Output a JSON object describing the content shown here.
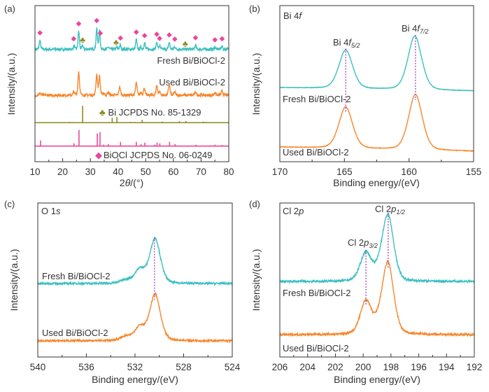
{
  "colors": {
    "fresh": "#3cbfc0",
    "used": "#f7862b",
    "bi_ref": "#8b8b1e",
    "biocl_ref": "#e8489b",
    "guide": "#a040c0",
    "axis": "#333333"
  },
  "chart_data": [
    {
      "panel": "(a)",
      "type": "line",
      "xlabel_pre": "2",
      "xlabel_theta": "θ",
      "xlabel_post": "/(°)",
      "ylabel": "Intensity/(a.u.)",
      "xlim": [
        10,
        80
      ],
      "ylim": [
        0,
        100
      ],
      "reversed": false,
      "xticks": [
        10,
        20,
        30,
        40,
        50,
        60,
        70,
        80
      ],
      "minor_step": 5,
      "grid": false,
      "series": [
        {
          "name": "Fresh Bi/BiOCl-2",
          "color_key": "fresh",
          "kind": "curve",
          "baseline": [
            72,
            72
          ],
          "noise": 0.9,
          "width": 0.25,
          "peaks": [
            [
              11.8,
              5.8
            ],
            [
              24.1,
              2.2
            ],
            [
              25.8,
              11.6
            ],
            [
              27.2,
              2.4
            ],
            [
              32.3,
              13.4
            ],
            [
              33.3,
              11.6
            ],
            [
              36.5,
              1.5
            ],
            [
              39.5,
              1.2
            ],
            [
              40.8,
              2.7
            ],
            [
              46.6,
              6.3
            ],
            [
              48.3,
              1.5
            ],
            [
              49.6,
              4
            ],
            [
              54.0,
              4.9
            ],
            [
              55.0,
              2.2
            ],
            [
              58.5,
              4.5
            ],
            [
              60.5,
              1.8
            ],
            [
              68.0,
              2.7
            ],
            [
              75.0,
              1.4
            ],
            [
              77.5,
              2.2
            ]
          ]
        },
        {
          "name": "Used Bi/BiOCl-2",
          "color_key": "used",
          "kind": "curve",
          "baseline": [
            42.6,
            42.6
          ],
          "noise": 0.9,
          "width": 0.28,
          "peaks": [
            [
              11.8,
              1.4
            ],
            [
              24.0,
              2.2
            ],
            [
              25.8,
              15.2
            ],
            [
              32.3,
              13.4
            ],
            [
              33.3,
              12.1
            ],
            [
              34.8,
              1.4
            ],
            [
              36.5,
              1.8
            ],
            [
              40.6,
              5.4
            ],
            [
              46.6,
              8
            ],
            [
              48.3,
              1.8
            ],
            [
              49.5,
              4.5
            ],
            [
              54.0,
              6.3
            ],
            [
              55.0,
              2.2
            ],
            [
              58.5,
              7.2
            ],
            [
              60.5,
              2.2
            ],
            [
              68.0,
              2.2
            ],
            [
              75.0,
              1.8
            ],
            [
              77.6,
              2.7
            ]
          ]
        },
        {
          "name": "Bi JCPDS No. 85-1329",
          "color_key": "bi_ref",
          "kind": "sticks",
          "baseline": [
            25,
            25
          ],
          "peaks": [
            [
              22.5,
              0.5
            ],
            [
              23.8,
              0.4
            ],
            [
              27.2,
              10.8
            ],
            [
              37.9,
              3.1
            ],
            [
              39.6,
              3.6
            ],
            [
              44.5,
              0.5
            ],
            [
              46.0,
              0.5
            ],
            [
              48.7,
              1.8
            ],
            [
              56.0,
              0.7
            ],
            [
              59.3,
              0.4
            ],
            [
              62.2,
              0.9
            ],
            [
              64.5,
              1.1
            ],
            [
              67.4,
              0.4
            ],
            [
              70.8,
              0.7
            ],
            [
              71.9,
              0.5
            ],
            [
              75.3,
              0.3
            ]
          ]
        },
        {
          "name": "BiOCl JCPDS No. 06-0249",
          "color_key": "biocl_ref",
          "kind": "sticks",
          "baseline": [
            10,
            10
          ],
          "peaks": [
            [
              12.0,
              3.6
            ],
            [
              24.1,
              1.8
            ],
            [
              25.9,
              10.3
            ],
            [
              32.5,
              8.1
            ],
            [
              33.5,
              9
            ],
            [
              34.8,
              0.9
            ],
            [
              36.5,
              1.3
            ],
            [
              40.9,
              2.7
            ],
            [
              46.6,
              2.7
            ],
            [
              48.3,
              1.3
            ],
            [
              49.7,
              2.2
            ],
            [
              53.2,
              0.9
            ],
            [
              54.1,
              2.2
            ],
            [
              55.1,
              1.8
            ],
            [
              58.6,
              2.7
            ],
            [
              60.6,
              1.3
            ],
            [
              68.1,
              0.9
            ],
            [
              73.5,
              0.5
            ],
            [
              75.0,
              0.9
            ],
            [
              77.6,
              0.7
            ]
          ]
        }
      ],
      "markers": {
        "biocl_symbol": "◆",
        "bi_symbol": "♣",
        "biocl_positions": [
          11.8,
          24.0,
          25.8,
          32.3,
          33.6,
          40.9,
          46.6,
          49.6,
          54.0,
          55.0,
          58.5,
          60.5,
          68.0,
          75.0,
          77.6
        ],
        "bi_positions": [
          27.2,
          39.3,
          64.3
        ]
      }
    },
    {
      "panel": "(b)",
      "type": "line",
      "title_main": "Bi 4",
      "title_it": "f",
      "xlabel": "Binding energy/(eV)",
      "ylabel": "Intensity/(a.u.)",
      "xlim": [
        170,
        155
      ],
      "ylim": [
        0,
        100
      ],
      "reversed": true,
      "xticks": [
        170,
        165,
        160,
        155
      ],
      "minor_step": 2.5,
      "grid": false,
      "peak_labels": [
        {
          "main": "Bi 4",
          "it": "f",
          "sub": "5/2",
          "x": 164.9
        },
        {
          "main": "Bi 4",
          "it": "f",
          "sub": "7/2",
          "x": 159.5
        }
      ],
      "series": [
        {
          "name": "Fresh Bi/BiOCl-2",
          "color_key": "fresh",
          "kind": "curve",
          "baseline": [
            47.5,
            45.3
          ],
          "noise": 0.15,
          "width": 0.55,
          "peaks": [
            [
              164.9,
              24.7
            ],
            [
              159.55,
              34.5
            ]
          ]
        },
        {
          "name": "Used Bi/BiOCl-2",
          "color_key": "used",
          "kind": "curve",
          "baseline": [
            9.4,
            6.7
          ],
          "noise": 0.15,
          "width": 0.55,
          "peaks": [
            [
              164.9,
              26.5
            ],
            [
              159.5,
              35.5
            ]
          ]
        }
      ]
    },
    {
      "panel": "(c)",
      "type": "line",
      "title_main": "O 1",
      "title_it": "s",
      "xlabel": "Binding energy/(eV)",
      "ylabel": "Intensity/(a.u.)",
      "xlim": [
        540,
        524
      ],
      "ylim": [
        0,
        100
      ],
      "reversed": true,
      "xticks": [
        540,
        536,
        532,
        528,
        524
      ],
      "minor_step": 2,
      "grid": false,
      "guide_x": [
        530.4
      ],
      "series": [
        {
          "name": "Fresh Bi/BiOCl-2",
          "color_key": "fresh",
          "kind": "curve",
          "baseline": [
            47.7,
            47.7
          ],
          "noise": 0.6,
          "width": 0.45,
          "peaks": [
            [
              530.35,
              29
            ],
            [
              531.6,
              9
            ],
            [
              532.8,
              2
            ]
          ]
        },
        {
          "name": "Used Bi/BiOCl-2",
          "color_key": "used",
          "kind": "curve",
          "baseline": [
            10.5,
            10.5
          ],
          "noise": 0.6,
          "width": 0.45,
          "peaks": [
            [
              530.35,
              30
            ],
            [
              531.6,
              9
            ],
            [
              532.8,
              2.5
            ]
          ]
        }
      ]
    },
    {
      "panel": "(d)",
      "type": "line",
      "title_main": "Cl 2",
      "title_it": "p",
      "xlabel": "Binding energy/(eV)",
      "ylabel": "Intensity/(a.u.)",
      "xlim": [
        206,
        192
      ],
      "ylim": [
        0,
        100
      ],
      "reversed": true,
      "xticks": [
        206,
        204,
        202,
        200,
        198,
        196,
        194,
        192
      ],
      "minor_step": 1,
      "grid": false,
      "peak_labels": [
        {
          "main": "Cl 2",
          "it": "p",
          "sub": "3/2",
          "x": 199.8
        },
        {
          "main": "Cl 2",
          "it": "p",
          "sub": "1/2",
          "x": 198.2
        }
      ],
      "series": [
        {
          "name": "Fresh Bi/BiOCl-2",
          "color_key": "fresh",
          "kind": "curve",
          "baseline": [
            49,
            49
          ],
          "noise": 0.7,
          "width": 0.42,
          "peaks": [
            [
              199.8,
              18.5
            ],
            [
              198.2,
              40.5
            ],
            [
              198.7,
              6
            ]
          ]
        },
        {
          "name": "Used Bi/BiOCl-2",
          "color_key": "used",
          "kind": "curve",
          "baseline": [
            14.5,
            14.5
          ],
          "noise": 0.7,
          "width": 0.42,
          "peaks": [
            [
              199.8,
              21.5
            ],
            [
              198.2,
              44
            ],
            [
              198.7,
              6
            ]
          ]
        }
      ]
    }
  ]
}
